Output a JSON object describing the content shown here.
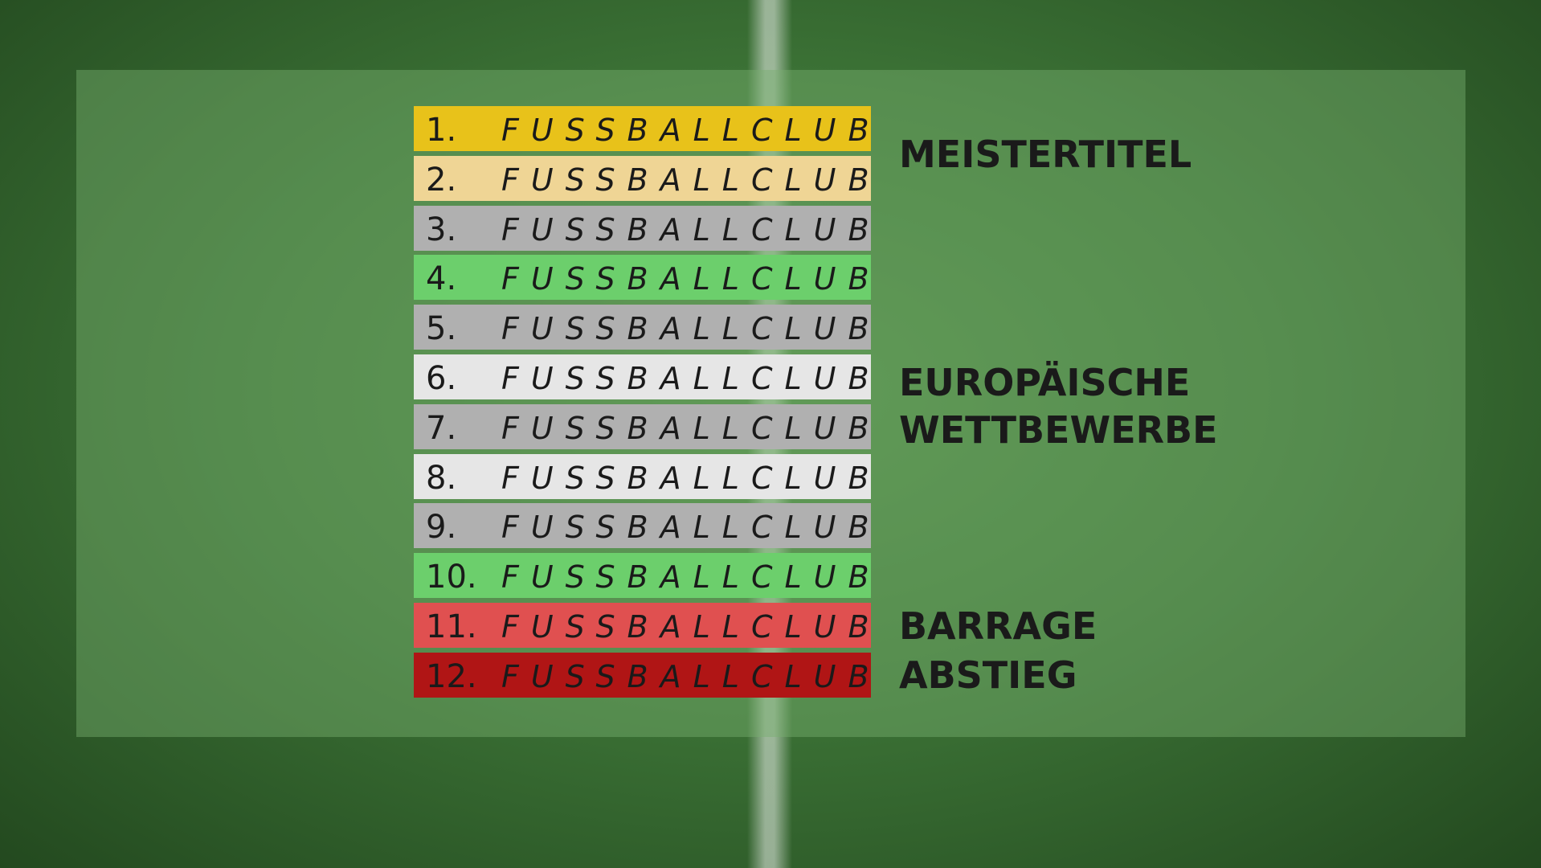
{
  "table": {
    "rows": [
      {
        "rank": "1.",
        "club": "FUSSBALLCLUB"
      },
      {
        "rank": "2.",
        "club": "FUSSBALLCLUB"
      },
      {
        "rank": "3.",
        "club": "FUSSBALLCLUB"
      },
      {
        "rank": "4.",
        "club": "FUSSBALLCLUB"
      },
      {
        "rank": "5.",
        "club": "FUSSBALLCLUB"
      },
      {
        "rank": "6.",
        "club": "FUSSBALLCLUB"
      },
      {
        "rank": "7.",
        "club": "FUSSBALLCLUB"
      },
      {
        "rank": "8.",
        "club": "FUSSBALLCLUB"
      },
      {
        "rank": "9.",
        "club": "FUSSBALLCLUB"
      },
      {
        "rank": "10.",
        "club": "FUSSBALLCLUB"
      },
      {
        "rank": "11.",
        "club": "FUSSBALLCLUB"
      },
      {
        "rank": "12.",
        "club": "FUSSBALLCLUB"
      }
    ]
  },
  "labels": {
    "title": "MEISTERTITEL",
    "europe_1": "EUROPÄISCHE",
    "europe_2": "WETTBEWERBE",
    "barrage": "BARRAGE",
    "relegation": "ABSTIEG"
  }
}
